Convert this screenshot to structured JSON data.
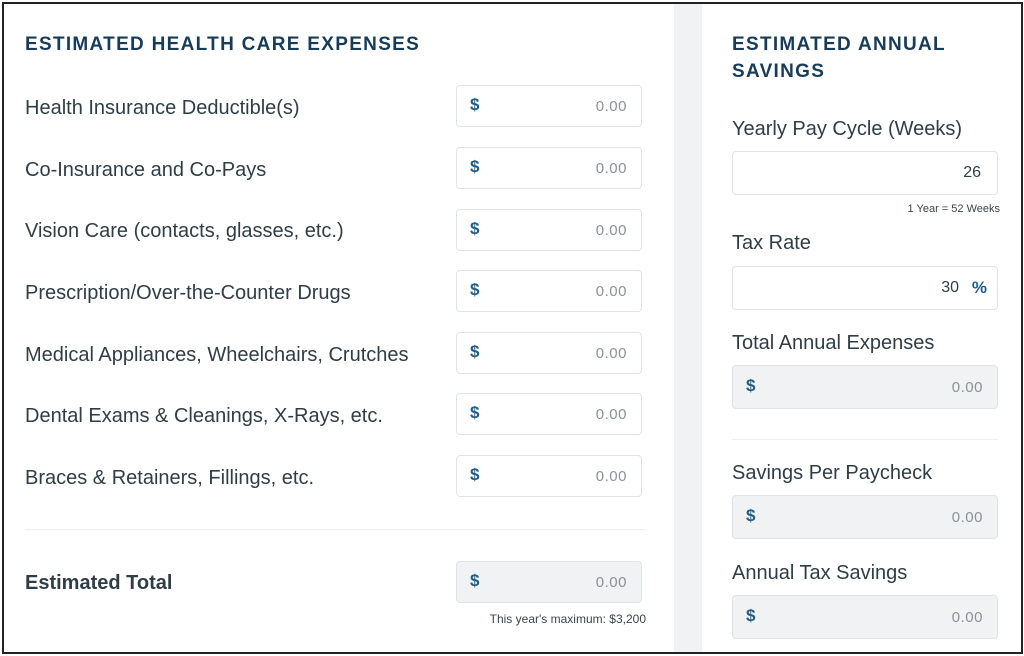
{
  "left": {
    "title": "ESTIMATED HEALTH CARE EXPENSES",
    "currency_symbol": "$",
    "rows": [
      {
        "label": "Health Insurance Deductible(s)",
        "value": "0.00"
      },
      {
        "label": "Co-Insurance and Co-Pays",
        "value": "0.00"
      },
      {
        "label": "Vision Care (contacts, glasses, etc.)",
        "value": "0.00"
      },
      {
        "label": "Prescription/Over-the-Counter Drugs",
        "value": "0.00"
      },
      {
        "label": "Medical Appliances, Wheelchairs, Crutches",
        "value": "0.00"
      },
      {
        "label": "Dental Exams & Cleanings, X-Rays, etc.",
        "value": "0.00"
      },
      {
        "label": "Braces & Retainers, Fillings, etc.",
        "value": "0.00"
      }
    ],
    "total": {
      "label": "Estimated Total",
      "value": "0.00",
      "note": "This year's maximum: $3,200"
    }
  },
  "right": {
    "title_line1": "ESTIMATED ANNUAL",
    "title_line2": "SAVINGS",
    "currency_symbol": "$",
    "pay_cycle": {
      "label": "Yearly Pay Cycle (Weeks)",
      "value": "26",
      "hint": "1 Year = 52 Weeks"
    },
    "tax_rate": {
      "label": "Tax Rate",
      "value": "30",
      "unit": "%"
    },
    "total_annual_expenses": {
      "label": "Total Annual Expenses",
      "value": "0.00"
    },
    "savings_per_paycheck": {
      "label": "Savings Per Paycheck",
      "value": "0.00"
    },
    "annual_tax_savings": {
      "label": "Annual Tax Savings",
      "value": "0.00"
    }
  },
  "colors": {
    "accent": "#1f5c86",
    "title": "#173c59",
    "text": "#2f3d47",
    "readonly_bg": "#f1f2f3"
  }
}
